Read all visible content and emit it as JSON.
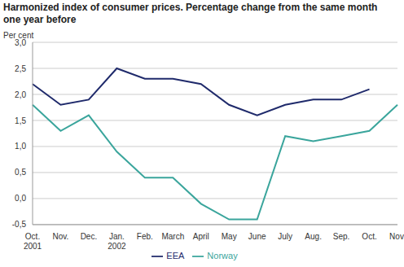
{
  "chart_data": {
    "type": "line",
    "title": "Harmonized index of consumer prices. Percentage change from the same month one year before",
    "y_label": "Per cent",
    "categories": [
      "Oct.\n2001",
      "Nov.",
      "Dec.",
      "Jan.\n2002",
      "Feb.",
      "March",
      "April",
      "May",
      "June",
      "July",
      "Aug.",
      "Sep.",
      "Oct.",
      "Nov."
    ],
    "series": [
      {
        "name": "EEA",
        "color": "#1f2a6b",
        "values": [
          2.2,
          1.8,
          1.9,
          2.5,
          2.3,
          2.3,
          2.2,
          1.8,
          1.6,
          1.8,
          1.9,
          1.9,
          2.1,
          null
        ]
      },
      {
        "name": "Norway",
        "color": "#3aa59c",
        "values": [
          1.8,
          1.3,
          1.6,
          0.9,
          0.4,
          0.4,
          -0.1,
          -0.4,
          -0.4,
          1.2,
          1.1,
          1.2,
          1.3,
          1.8
        ]
      }
    ],
    "ylim": [
      -0.5,
      3.0
    ],
    "yticks": [
      {
        "value": -0.5,
        "label": "-0,5"
      },
      {
        "value": 0,
        "label": "0,0"
      },
      {
        "value": 0.5,
        "label": "0,5"
      },
      {
        "value": 1.0,
        "label": "1,0"
      },
      {
        "value": 1.5,
        "label": "1,5"
      },
      {
        "value": 2.0,
        "label": "2,0"
      },
      {
        "value": 2.5,
        "label": "2,5"
      },
      {
        "value": 3.0,
        "label": "3,0"
      }
    ],
    "grid": true,
    "legend": "bottom"
  }
}
